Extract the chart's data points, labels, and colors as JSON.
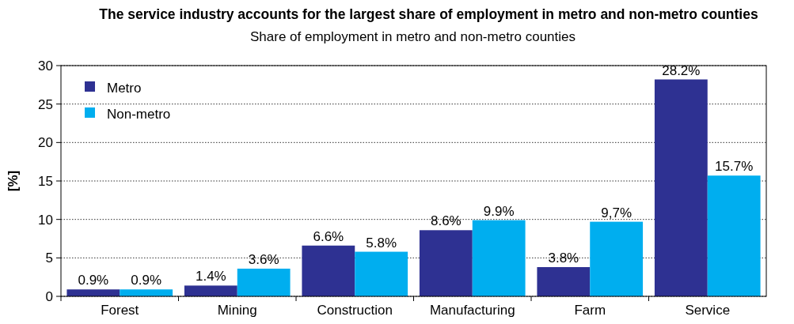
{
  "chart_data": {
    "type": "bar",
    "title": "The service industry accounts for the largest share of employment in metro and non-metro counties",
    "subtitle": "Share of employment in metro and non-metro counties",
    "ylabel": "[%]",
    "categories": [
      "Forest",
      "Mining",
      "Construction",
      "Manufacturing",
      "Farm",
      "Service"
    ],
    "series": [
      {
        "name": "Metro",
        "color": "#2e3192",
        "values": [
          0.9,
          1.4,
          6.6,
          8.6,
          3.8,
          28.2
        ],
        "value_labels": [
          "0.9%",
          "1.4%",
          "6.6%",
          "8.6%",
          "3.8%",
          "28.2%"
        ]
      },
      {
        "name": "Non-metro",
        "color": "#00aeef",
        "values": [
          0.9,
          3.6,
          5.8,
          9.9,
          9.7,
          15.7
        ],
        "value_labels": [
          "0.9%",
          "3.6%",
          "5.8%",
          "9.9%",
          "9,7%",
          "15.7%"
        ]
      }
    ],
    "ylim": [
      0,
      30
    ],
    "yticks": [
      0,
      5,
      10,
      15,
      20,
      25,
      30
    ],
    "grid": "y",
    "legend": "top left"
  }
}
